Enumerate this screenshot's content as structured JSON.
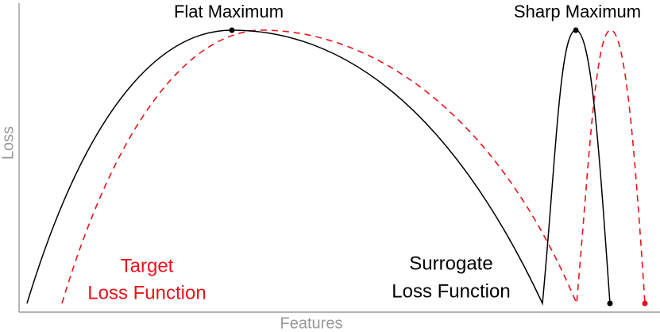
{
  "axes": {
    "x_label": "Features",
    "y_label": "Loss"
  },
  "annotations": {
    "flat_maximum": "Flat Maximum",
    "sharp_maximum": "Sharp Maximum",
    "target": [
      "Target",
      "Loss Function"
    ],
    "surrogate": [
      "Surrogate",
      "Loss Function"
    ]
  }
}
